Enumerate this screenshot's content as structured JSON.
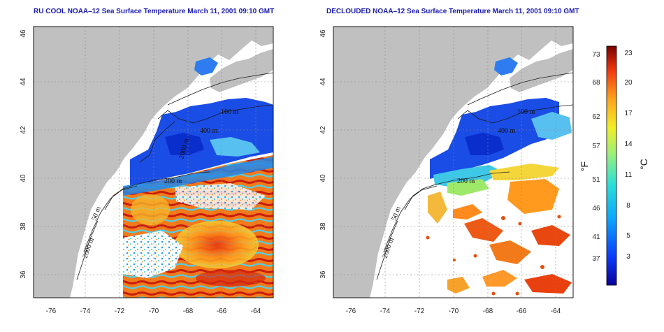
{
  "panels": [
    {
      "title": "RU COOL NOAA–12 Sea Surface Temperature March 11, 2001 09:10 GMT"
    },
    {
      "title": "DECLOUDED NOAA–12 Sea Surface Temperature March 11, 2001 09:10 GMT"
    }
  ],
  "axes": {
    "x_ticks": [
      "-76",
      "-74",
      "-72",
      "-70",
      "-68",
      "-66",
      "-64"
    ],
    "y_ticks": [
      "46",
      "44",
      "42",
      "40",
      "38",
      "36"
    ]
  },
  "contours": {
    "labels_left": [
      "100 m",
      "400 m",
      "2000 m",
      "200 m",
      "50 m",
      "2000 m"
    ],
    "labels_right": [
      "100 m",
      "400 m",
      "200 m",
      "50 m",
      "2000 m"
    ]
  },
  "colorbar": {
    "f_unit": "°F",
    "c_unit": "°C",
    "f_ticks": [
      "73",
      "68",
      "62",
      "57",
      "51",
      "46",
      "41",
      "37"
    ],
    "c_ticks": [
      "23",
      "20",
      "17",
      "14",
      "11",
      "8",
      "5",
      "3"
    ]
  },
  "colors": {
    "land": "#c0c0c0",
    "title": "#1b1bb0",
    "cold": "#1030d8",
    "warm": "#e83010"
  }
}
